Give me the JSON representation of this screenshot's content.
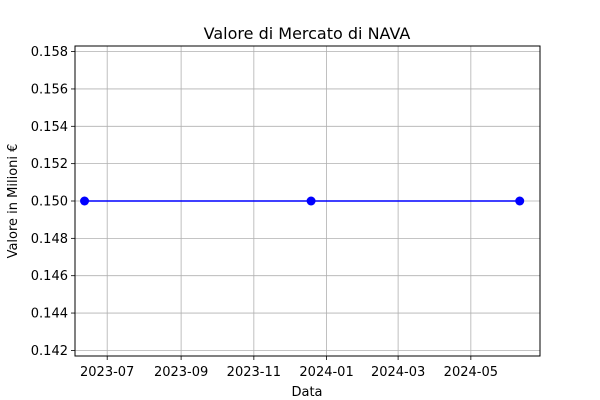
{
  "chart_data": {
    "type": "line",
    "title": "Valore di Mercato di NAVA",
    "xlabel": "Data",
    "ylabel": "Valore in Milioni €",
    "x_scale": "date",
    "xlim": [
      "2023-06-04",
      "2024-06-28"
    ],
    "ylim": [
      0.1417,
      0.1583
    ],
    "grid": true,
    "x_ticks": [
      {
        "date": "2023-07-01",
        "label": "2023-07"
      },
      {
        "date": "2023-09-01",
        "label": "2023-09"
      },
      {
        "date": "2023-11-01",
        "label": "2023-11"
      },
      {
        "date": "2024-01-01",
        "label": "2024-01"
      },
      {
        "date": "2024-03-01",
        "label": "2024-03"
      },
      {
        "date": "2024-05-01",
        "label": "2024-05"
      }
    ],
    "y_ticks": [
      {
        "value": 0.142,
        "label": "0.142"
      },
      {
        "value": 0.144,
        "label": "0.144"
      },
      {
        "value": 0.146,
        "label": "0.146"
      },
      {
        "value": 0.148,
        "label": "0.148"
      },
      {
        "value": 0.15,
        "label": "0.150"
      },
      {
        "value": 0.152,
        "label": "0.152"
      },
      {
        "value": 0.154,
        "label": "0.154"
      },
      {
        "value": 0.156,
        "label": "0.156"
      },
      {
        "value": 0.158,
        "label": "0.158"
      }
    ],
    "series": [
      {
        "color": "#0000ff",
        "marker": "circle",
        "points": [
          {
            "x": "2023-06-12",
            "y": 0.15
          },
          {
            "x": "2023-12-19",
            "y": 0.15
          },
          {
            "x": "2024-06-11",
            "y": 0.15
          }
        ]
      }
    ]
  }
}
